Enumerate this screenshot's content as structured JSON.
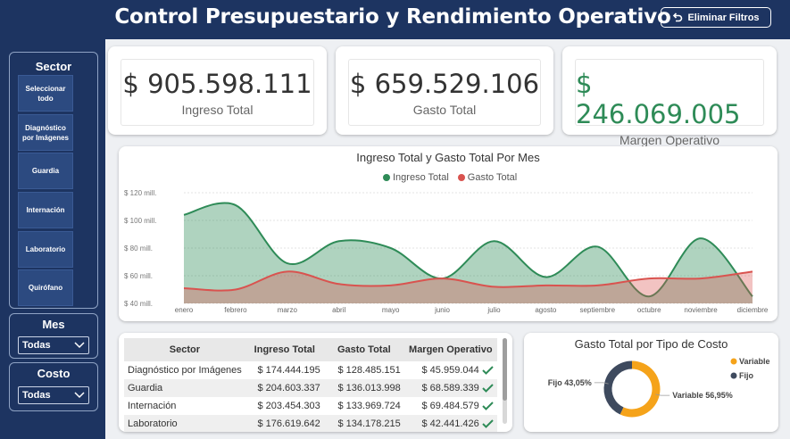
{
  "header": {
    "title": "Control Presupuestario y Rendimiento Operativo",
    "reset_label": "Eliminar Filtros"
  },
  "colors": {
    "navy": "#1d3461",
    "green": "#2e8b57",
    "red": "#d9534f",
    "orange": "#f5a31a",
    "slate": "#3e4a5e"
  },
  "slicers": {
    "sector": {
      "title": "Sector",
      "items": [
        "Seleccionar todo",
        "Diagnóstico por Imágenes",
        "Guardia",
        "Internación",
        "Laboratorio",
        "Quirófano"
      ]
    },
    "mes": {
      "title": "Mes",
      "selected": "Todas"
    },
    "costo": {
      "title": "Costo",
      "selected": "Todas"
    }
  },
  "kpis": [
    {
      "value": "$ 905.598.111",
      "label": "Ingreso Total"
    },
    {
      "value": "$ 659.529.106",
      "label": "Gasto Total"
    },
    {
      "value": "$ 246.069.005",
      "label": "Margen Operativo",
      "color": "#2e8b57"
    }
  ],
  "chart_data": [
    {
      "type": "area",
      "title": "Ingreso Total y Gasto Total Por Mes",
      "categories": [
        "enero",
        "febrero",
        "marzo",
        "abril",
        "mayo",
        "junio",
        "julio",
        "agosto",
        "septiembre",
        "octubre",
        "noviembre",
        "diciembre"
      ],
      "series": [
        {
          "name": "Ingreso Total",
          "color": "#2e8b57",
          "values": [
            104,
            111,
            69,
            85,
            80,
            58,
            85,
            59,
            81,
            45,
            87,
            45
          ]
        },
        {
          "name": "Gasto Total",
          "color": "#d9534f",
          "values": [
            51,
            50,
            63,
            54,
            53,
            58,
            52,
            53,
            53,
            58,
            58,
            63
          ]
        }
      ],
      "y_ticks": [
        "$ 40 mill.",
        "$ 60 mill.",
        "$ 80 mill.",
        "$ 100 mill.",
        "$ 120 mill."
      ],
      "ylim": [
        40,
        120
      ],
      "legend_position": "top-center"
    },
    {
      "type": "pie",
      "title": "Gasto Total por Tipo de Costo",
      "slices": [
        {
          "name": "Variable",
          "value": 56.95,
          "label": "Variable 56,95%",
          "color": "#f5a31a"
        },
        {
          "name": "Fijo",
          "value": 43.05,
          "label": "Fijo 43,05%",
          "color": "#3e4a5e"
        }
      ],
      "legend_position": "top-right"
    }
  ],
  "table": {
    "headers": [
      "Sector",
      "Ingreso Total",
      "Gasto Total",
      "Margen Operativo"
    ],
    "rows": [
      [
        "Diagnóstico por Imágenes",
        "$ 174.444.195",
        "$ 128.485.151",
        "$ 45.959.044"
      ],
      [
        "Guardia",
        "$ 204.603.337",
        "$ 136.013.998",
        "$ 68.589.339"
      ],
      [
        "Internación",
        "$ 203.454.303",
        "$ 133.969.724",
        "$ 69.484.579"
      ],
      [
        "Laboratorio",
        "$ 176.619.642",
        "$ 134.178.215",
        "$ 42.441.426"
      ]
    ],
    "status_icon": "check-icon"
  }
}
